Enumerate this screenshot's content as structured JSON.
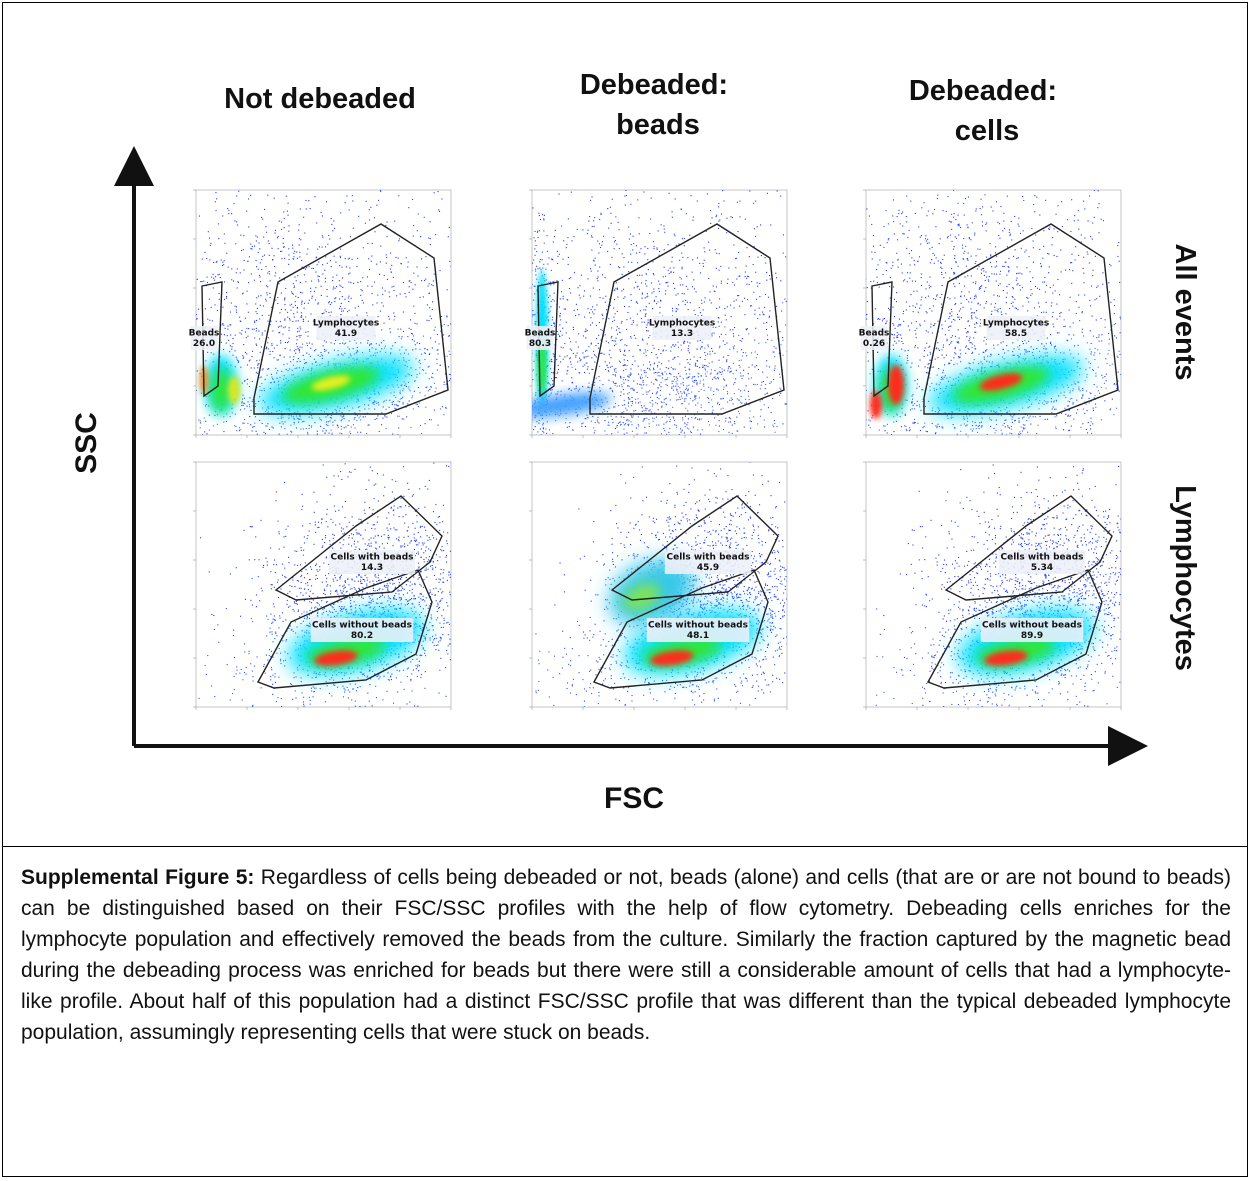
{
  "figure": {
    "column_headers": [
      [
        "Not debeaded"
      ],
      [
        "Debeaded:",
        "beads"
      ],
      [
        "Debeaded:",
        "cells"
      ]
    ],
    "row_headers": [
      "All events",
      "Lymphocytes"
    ],
    "x_axis_title": "FSC",
    "y_axis_title": "SSC",
    "panels": [
      {
        "row": 0,
        "col": 0,
        "gates": [
          {
            "name": "Beads",
            "value": "26.0"
          },
          {
            "name": "Lymphocytes",
            "value": "41.9"
          }
        ]
      },
      {
        "row": 0,
        "col": 1,
        "gates": [
          {
            "name": "Beads",
            "value": "80.3"
          },
          {
            "name": "Lymphocytes",
            "value": "13.3"
          }
        ]
      },
      {
        "row": 0,
        "col": 2,
        "gates": [
          {
            "name": "Beads",
            "value": "0.26"
          },
          {
            "name": "Lymphocytes",
            "value": "58.5"
          }
        ]
      },
      {
        "row": 1,
        "col": 0,
        "gates": [
          {
            "name": "Cells with beads",
            "value": "14.3"
          },
          {
            "name": "Cells without beads",
            "value": "80.2"
          }
        ]
      },
      {
        "row": 1,
        "col": 1,
        "gates": [
          {
            "name": "Cells with beads",
            "value": "45.9"
          },
          {
            "name": "Cells without beads",
            "value": "48.1"
          }
        ]
      },
      {
        "row": 1,
        "col": 2,
        "gates": [
          {
            "name": "Cells with beads",
            "value": "5.34"
          },
          {
            "name": "Cells without beads",
            "value": "89.9"
          }
        ]
      }
    ],
    "colors": {
      "low_density": "#1e3cff",
      "mid_density": "#00e0ff",
      "high_density": "#32e632",
      "peak_density": "#ff2a1a",
      "gate_line": "#222222"
    }
  },
  "caption": {
    "label": "Supplemental Figure 5:",
    "text": " Regardless of cells being debeaded or not, beads (alone) and cells (that are or are not bound to beads) can be distinguished based on their FSC/SSC profiles with the help of flow cytometry. Debeading cells enriches for the lymphocyte population and effectively removed the beads from the culture. Similarly the fraction captured by the magnetic bead during the debeading process was enriched for beads but there were still a considerable amount of cells that had a lymphocyte-like profile. About half of this population had a distinct FSC/SSC profile that was different than the typical debeaded lymphocyte population, assumingly representing cells that were stuck on beads."
  }
}
